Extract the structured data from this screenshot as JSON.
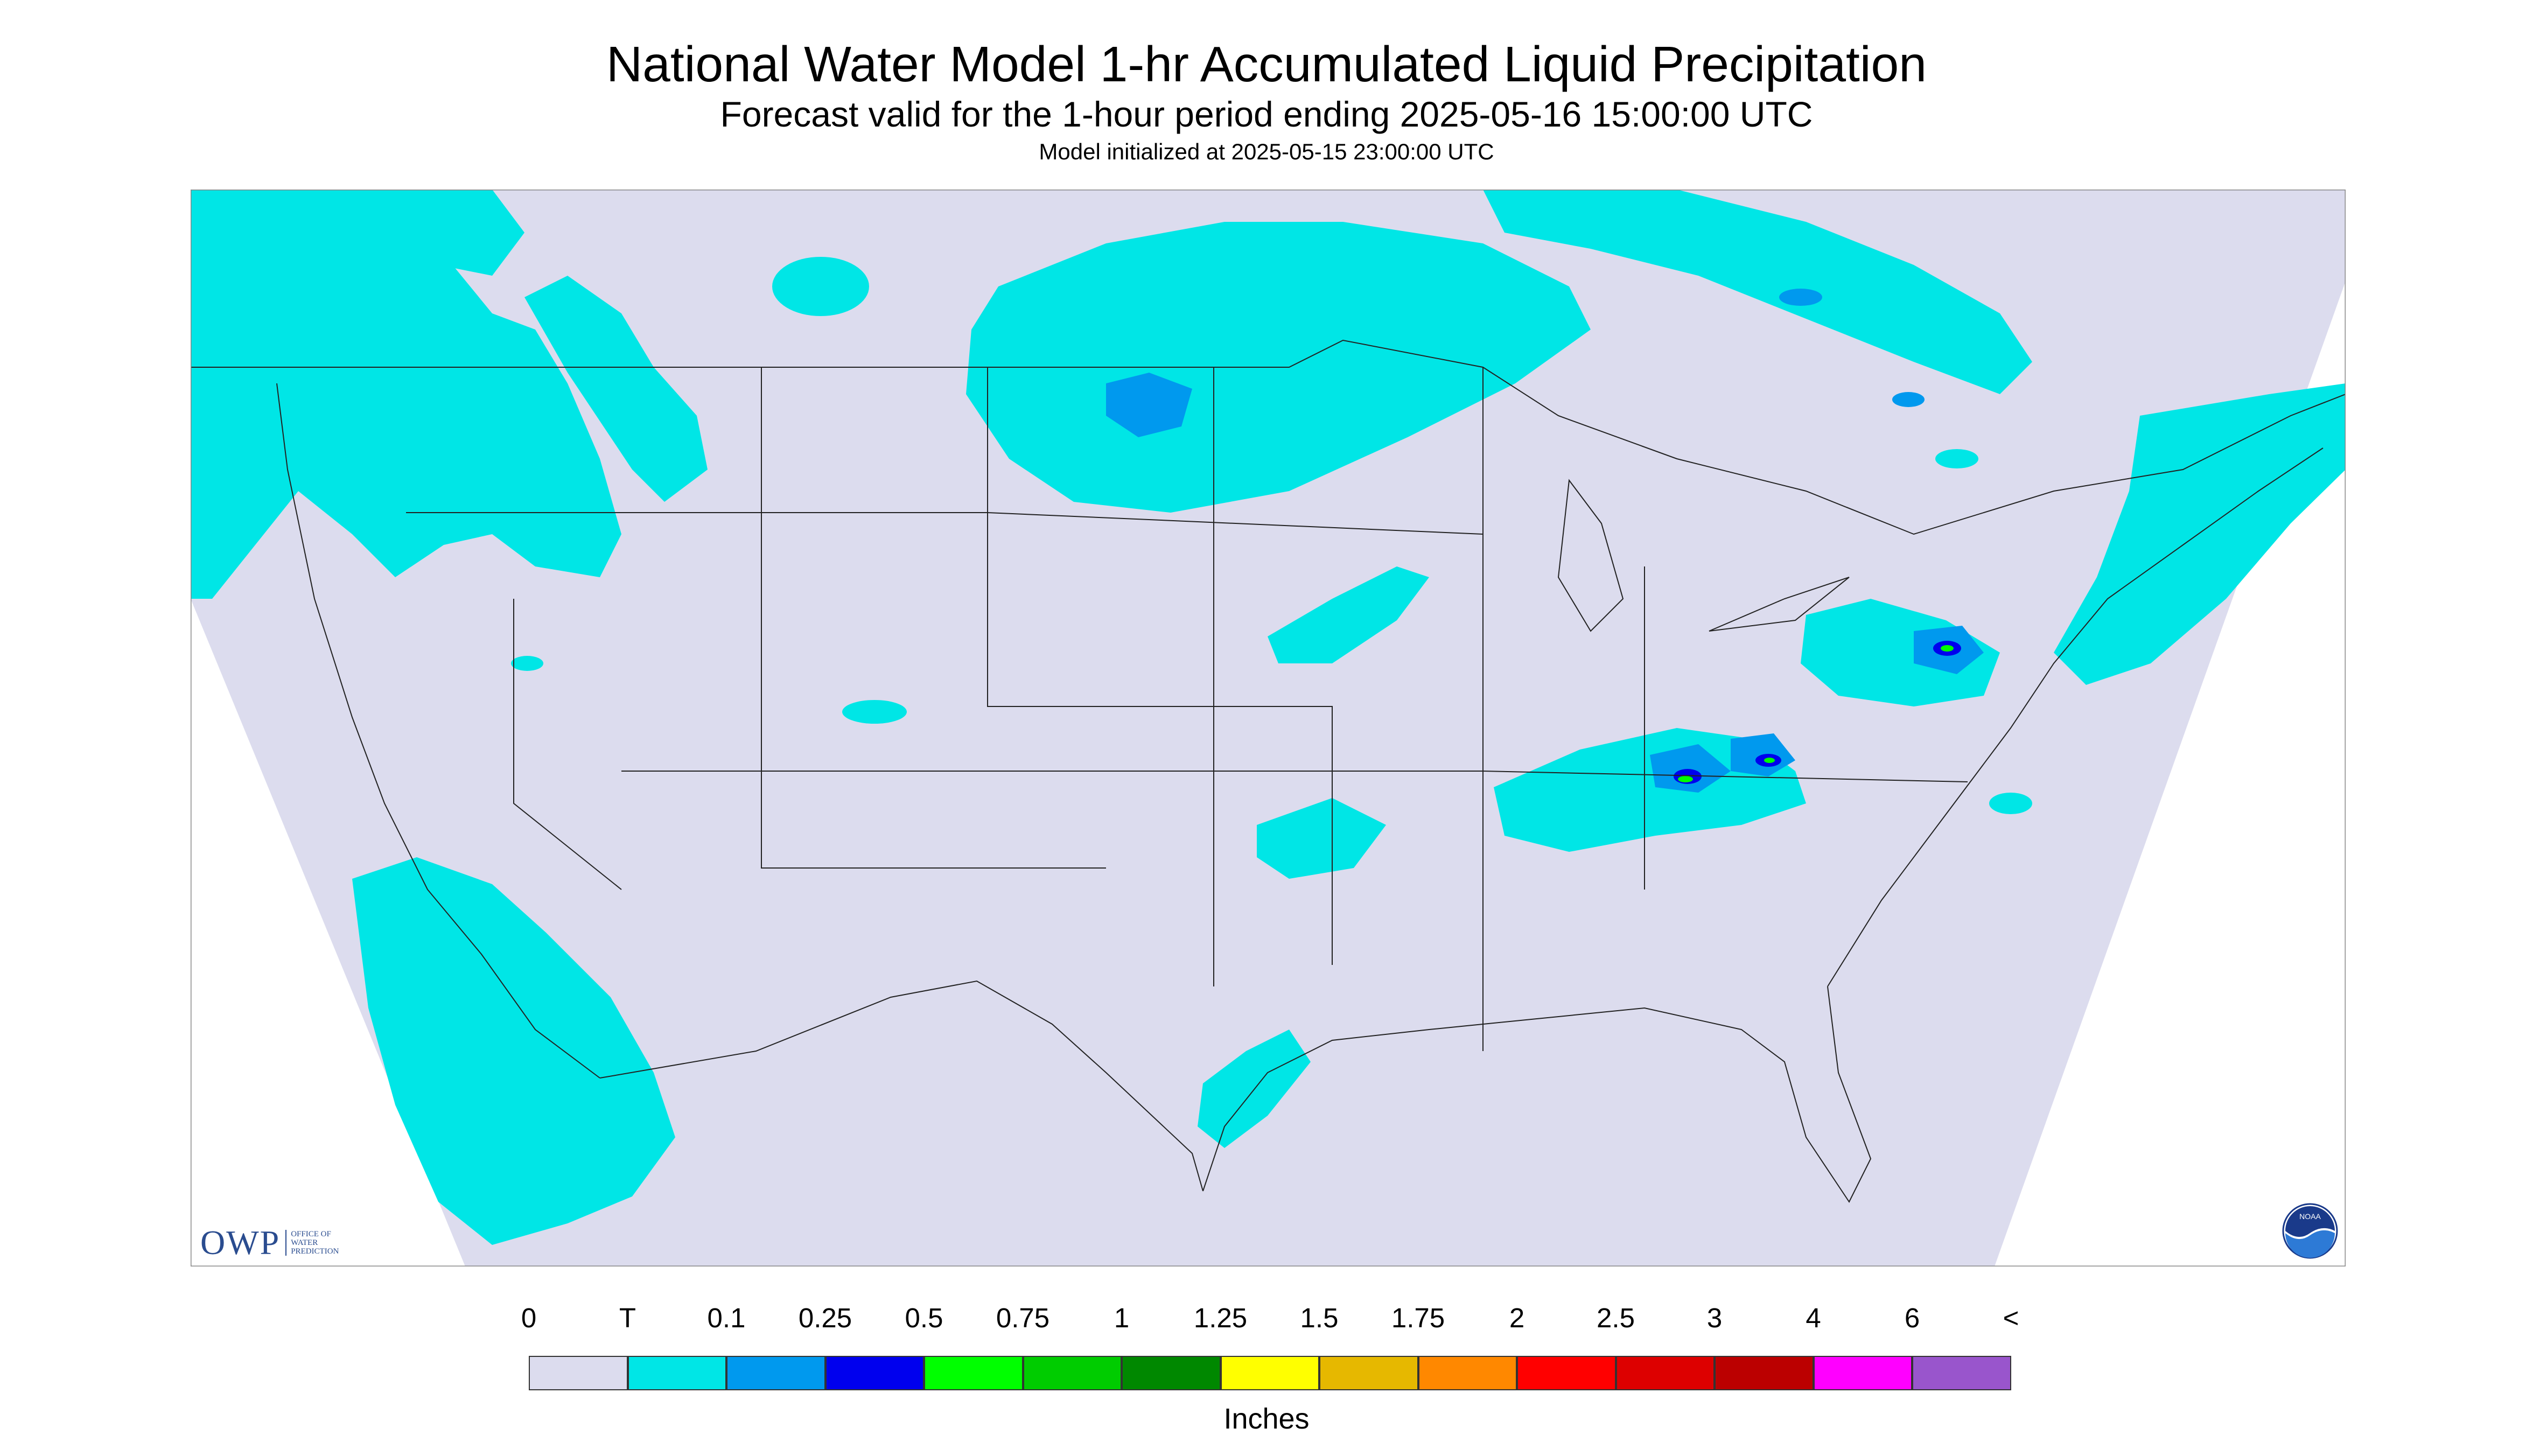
{
  "title": "National Water Model 1-hr Accumulated Liquid Precipitation",
  "subtitle": "Forecast valid for the 1-hour period ending 2025-05-16 15:00:00 UTC",
  "init_line": "Model initialized at 2025-05-15 23:00:00 UTC",
  "legend": {
    "units": "Inches",
    "labels": [
      "0",
      "T",
      "0.1",
      "0.25",
      "0.5",
      "0.75",
      "1",
      "1.25",
      "1.5",
      "1.75",
      "2",
      "2.5",
      "3",
      "4",
      "6",
      "<"
    ],
    "colors": [
      "#dcdcee",
      "#00e6e6",
      "#0099ee",
      "#0000ee",
      "#00ff00",
      "#00cc00",
      "#008800",
      "#ffff00",
      "#e6b800",
      "#ff8800",
      "#ff0000",
      "#dd0000",
      "#bb0000",
      "#ff00ff",
      "#9955cc"
    ]
  },
  "logos": {
    "owp_text": "OWP",
    "owp_subtext": [
      "OFFICE OF",
      "WATER",
      "PREDICTION"
    ],
    "noaa_text": "NOAA"
  },
  "colors": {
    "background_no_precip": "#dcdcee",
    "trace": "#00e6e6",
    "tenth": "#0099ee",
    "quarter": "#0000ee",
    "half": "#00ff00",
    "logo_blue": "#2a4c8f"
  }
}
